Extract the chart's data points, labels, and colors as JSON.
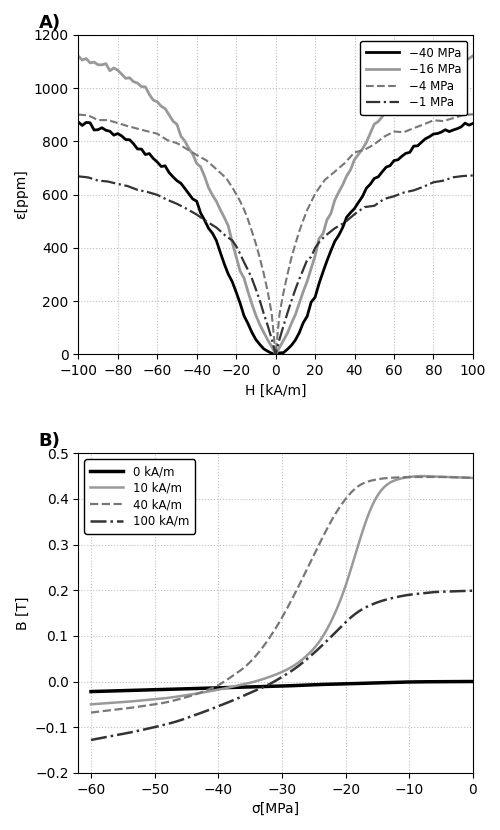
{
  "panel_A": {
    "title": "A)",
    "xlabel": "H [kA/m]",
    "ylabel": "ε[ppm]",
    "xlim": [
      -100,
      100
    ],
    "ylim": [
      0,
      1200
    ],
    "xticks": [
      -100,
      -80,
      -60,
      -40,
      -20,
      0,
      20,
      40,
      60,
      80,
      100
    ],
    "yticks": [
      0,
      200,
      400,
      600,
      800,
      1000,
      1200
    ],
    "curves": [
      {
        "label": "−40 MPa",
        "color": "#000000",
        "linestyle": "solid",
        "linewidth": 2.0,
        "noise_scale": 8.0,
        "H": [
          -100,
          -98,
          -96,
          -94,
          -92,
          -90,
          -88,
          -86,
          -84,
          -82,
          -80,
          -78,
          -76,
          -74,
          -72,
          -70,
          -68,
          -66,
          -64,
          -62,
          -60,
          -58,
          -56,
          -54,
          -52,
          -50,
          -48,
          -46,
          -44,
          -42,
          -40,
          -38,
          -36,
          -34,
          -32,
          -30,
          -28,
          -26,
          -24,
          -22,
          -20,
          -18,
          -16,
          -14,
          -12,
          -10,
          -8,
          -6,
          -4,
          -2,
          0,
          2,
          4,
          6,
          8,
          10,
          12,
          14,
          16,
          18,
          20,
          22,
          24,
          26,
          28,
          30,
          32,
          34,
          36,
          38,
          40,
          42,
          44,
          46,
          48,
          50,
          52,
          54,
          56,
          58,
          60,
          62,
          64,
          66,
          68,
          70,
          72,
          74,
          76,
          78,
          80,
          82,
          84,
          86,
          88,
          90,
          92,
          94,
          96,
          98,
          100
        ],
        "eps": [
          870,
          868,
          865,
          862,
          858,
          854,
          850,
          844,
          838,
          830,
          822,
          814,
          806,
          797,
          787,
          778,
          768,
          758,
          747,
          736,
          724,
          711,
          698,
          684,
          670,
          655,
          638,
          620,
          600,
          580,
          558,
          534,
          508,
          480,
          450,
          418,
          383,
          346,
          308,
          268,
          228,
          188,
          150,
          115,
          82,
          55,
          35,
          20,
          10,
          4,
          0,
          4,
          10,
          20,
          35,
          55,
          82,
          115,
          150,
          188,
          228,
          268,
          308,
          346,
          383,
          418,
          450,
          480,
          508,
          534,
          558,
          580,
          600,
          620,
          638,
          655,
          670,
          684,
          698,
          711,
          724,
          736,
          747,
          758,
          768,
          778,
          787,
          797,
          806,
          814,
          822,
          830,
          838,
          844,
          850,
          854,
          858,
          862,
          865,
          868,
          870
        ]
      },
      {
        "label": "−16 MPa",
        "color": "#999999",
        "linestyle": "solid",
        "linewidth": 2.0,
        "noise_scale": 8.0,
        "H": [
          -100,
          -98,
          -96,
          -94,
          -92,
          -90,
          -88,
          -86,
          -84,
          -82,
          -80,
          -78,
          -76,
          -74,
          -72,
          -70,
          -68,
          -66,
          -64,
          -62,
          -60,
          -58,
          -56,
          -54,
          -52,
          -50,
          -48,
          -46,
          -44,
          -42,
          -40,
          -38,
          -36,
          -34,
          -32,
          -30,
          -28,
          -26,
          -24,
          -22,
          -20,
          -18,
          -16,
          -14,
          -12,
          -10,
          -8,
          -6,
          -4,
          -2,
          0,
          2,
          4,
          6,
          8,
          10,
          12,
          14,
          16,
          18,
          20,
          22,
          24,
          26,
          28,
          30,
          32,
          34,
          36,
          38,
          40,
          42,
          44,
          46,
          48,
          50,
          52,
          54,
          56,
          58,
          60,
          62,
          64,
          66,
          68,
          70,
          72,
          74,
          76,
          78,
          80,
          82,
          84,
          86,
          88,
          90,
          92,
          94,
          96,
          98,
          100
        ],
        "eps": [
          1110,
          1108,
          1105,
          1102,
          1099,
          1095,
          1090,
          1085,
          1079,
          1072,
          1065,
          1057,
          1048,
          1038,
          1028,
          1017,
          1005,
          992,
          978,
          963,
          947,
          930,
          912,
          893,
          873,
          852,
          829,
          806,
          781,
          755,
          728,
          699,
          670,
          638,
          606,
          572,
          536,
          498,
          459,
          418,
          375,
          330,
          284,
          237,
          190,
          148,
          112,
          80,
          54,
          30,
          0,
          30,
          54,
          80,
          112,
          148,
          190,
          237,
          284,
          330,
          375,
          418,
          459,
          498,
          536,
          572,
          606,
          638,
          670,
          699,
          728,
          755,
          781,
          806,
          829,
          852,
          873,
          893,
          912,
          930,
          947,
          963,
          978,
          992,
          1005,
          1017,
          1028,
          1038,
          1048,
          1057,
          1065,
          1072,
          1079,
          1085,
          1090,
          1095,
          1099,
          1102,
          1105,
          1108,
          1110
        ]
      },
      {
        "label": "−4 MPa",
        "color": "#777777",
        "linestyle": "dashed",
        "linewidth": 1.5,
        "noise_scale": 4.0,
        "H": [
          -100,
          -95,
          -90,
          -85,
          -80,
          -75,
          -70,
          -65,
          -60,
          -55,
          -50,
          -45,
          -40,
          -35,
          -30,
          -25,
          -22,
          -20,
          -18,
          -16,
          -14,
          -12,
          -10,
          -8,
          -6,
          -4,
          -2,
          0,
          2,
          4,
          6,
          8,
          10,
          12,
          14,
          16,
          18,
          20,
          22,
          25,
          30,
          35,
          40,
          45,
          50,
          55,
          60,
          65,
          70,
          75,
          80,
          85,
          90,
          95,
          100
        ],
        "eps": [
          900,
          895,
          888,
          880,
          872,
          862,
          851,
          839,
          825,
          810,
          793,
          773,
          750,
          724,
          693,
          656,
          628,
          605,
          576,
          543,
          506,
          463,
          415,
          361,
          300,
          233,
          155,
          0,
          155,
          233,
          300,
          361,
          415,
          463,
          506,
          543,
          576,
          605,
          628,
          656,
          693,
          724,
          750,
          773,
          793,
          810,
          825,
          839,
          851,
          862,
          872,
          880,
          888,
          895,
          900
        ]
      },
      {
        "label": "−1 MPa",
        "color": "#333333",
        "linestyle": "dashdot",
        "linewidth": 1.6,
        "noise_scale": 4.0,
        "H": [
          -100,
          -95,
          -90,
          -85,
          -80,
          -75,
          -70,
          -65,
          -60,
          -55,
          -50,
          -45,
          -40,
          -35,
          -30,
          -25,
          -22,
          -20,
          -18,
          -16,
          -14,
          -12,
          -10,
          -8,
          -6,
          -4,
          -2,
          0,
          2,
          4,
          6,
          8,
          10,
          12,
          14,
          16,
          18,
          20,
          22,
          25,
          30,
          35,
          40,
          45,
          50,
          55,
          60,
          65,
          70,
          75,
          80,
          85,
          90,
          95,
          100
        ],
        "eps": [
          670,
          665,
          658,
          650,
          641,
          631,
          620,
          608,
          595,
          580,
          564,
          546,
          525,
          502,
          475,
          443,
          420,
          400,
          376,
          349,
          318,
          283,
          244,
          201,
          155,
          107,
          58,
          0,
          58,
          107,
          155,
          201,
          244,
          283,
          318,
          349,
          376,
          400,
          420,
          443,
          475,
          502,
          525,
          546,
          564,
          580,
          595,
          608,
          620,
          631,
          641,
          650,
          658,
          665,
          670
        ]
      }
    ]
  },
  "panel_B": {
    "title": "B)",
    "xlabel": "σ[MPa]",
    "ylabel": "B [T]",
    "xlim": [
      -62,
      0
    ],
    "ylim": [
      -0.2,
      0.5
    ],
    "xticks": [
      -60,
      -50,
      -40,
      -30,
      -20,
      -10,
      0
    ],
    "yticks": [
      -0.2,
      -0.1,
      0.0,
      0.1,
      0.2,
      0.3,
      0.4,
      0.5
    ],
    "curves": [
      {
        "label": "0 kA/m",
        "color": "#000000",
        "linestyle": "solid",
        "linewidth": 2.5,
        "sigma": [
          -60,
          -55,
          -50,
          -45,
          -40,
          -35,
          -30,
          -25,
          -20,
          -15,
          -10,
          -5,
          -2,
          0
        ],
        "B": [
          -0.022,
          -0.02,
          -0.018,
          -0.016,
          -0.014,
          -0.012,
          -0.01,
          -0.007,
          -0.005,
          -0.003,
          -0.001,
          -0.0003,
          0.0,
          0.0
        ]
      },
      {
        "label": "10 kA/m",
        "color": "#999999",
        "linestyle": "solid",
        "linewidth": 1.8,
        "sigma": [
          -60,
          -57,
          -54,
          -51,
          -48,
          -46,
          -44,
          -42,
          -40,
          -38,
          -36,
          -34,
          -32,
          -30,
          -28,
          -26,
          -24,
          -22,
          -20,
          -18,
          -16,
          -14,
          -12,
          -10,
          -8,
          -6,
          -4,
          -2,
          0
        ],
        "B": [
          -0.05,
          -0.047,
          -0.044,
          -0.04,
          -0.036,
          -0.032,
          -0.028,
          -0.023,
          -0.018,
          -0.012,
          -0.006,
          0.001,
          0.01,
          0.021,
          0.036,
          0.058,
          0.09,
          0.14,
          0.21,
          0.3,
          0.38,
          0.425,
          0.442,
          0.448,
          0.45,
          0.449,
          0.448,
          0.447,
          0.446
        ]
      },
      {
        "label": "40 kA/m",
        "color": "#777777",
        "linestyle": "dashed",
        "linewidth": 1.6,
        "sigma": [
          -60,
          -57,
          -54,
          -51,
          -48,
          -46,
          -44,
          -42,
          -40,
          -38,
          -36,
          -34,
          -32,
          -30,
          -28,
          -26,
          -24,
          -22,
          -20,
          -18,
          -16,
          -14,
          -12,
          -10,
          -8,
          -6,
          -4,
          -2,
          0
        ],
        "B": [
          -0.068,
          -0.063,
          -0.058,
          -0.052,
          -0.045,
          -0.038,
          -0.03,
          -0.02,
          -0.008,
          0.01,
          0.03,
          0.058,
          0.095,
          0.14,
          0.192,
          0.248,
          0.305,
          0.358,
          0.4,
          0.428,
          0.44,
          0.445,
          0.447,
          0.448,
          0.448,
          0.448,
          0.448,
          0.447,
          0.446
        ]
      },
      {
        "label": "100 kA/m",
        "color": "#333333",
        "linestyle": "dashdot",
        "linewidth": 1.8,
        "sigma": [
          -60,
          -57,
          -54,
          -51,
          -48,
          -46,
          -44,
          -42,
          -40,
          -38,
          -36,
          -34,
          -32,
          -30,
          -28,
          -26,
          -24,
          -22,
          -20,
          -18,
          -16,
          -14,
          -12,
          -10,
          -8,
          -6,
          -4,
          -2,
          0
        ],
        "B": [
          -0.128,
          -0.12,
          -0.112,
          -0.103,
          -0.093,
          -0.085,
          -0.075,
          -0.065,
          -0.054,
          -0.043,
          -0.031,
          -0.019,
          -0.006,
          0.01,
          0.028,
          0.05,
          0.075,
          0.102,
          0.13,
          0.153,
          0.168,
          0.178,
          0.185,
          0.19,
          0.193,
          0.196,
          0.197,
          0.198,
          0.199
        ]
      }
    ]
  },
  "background_color": "#ffffff",
  "grid_color": "#c0c0c0",
  "noise_seed": 42
}
